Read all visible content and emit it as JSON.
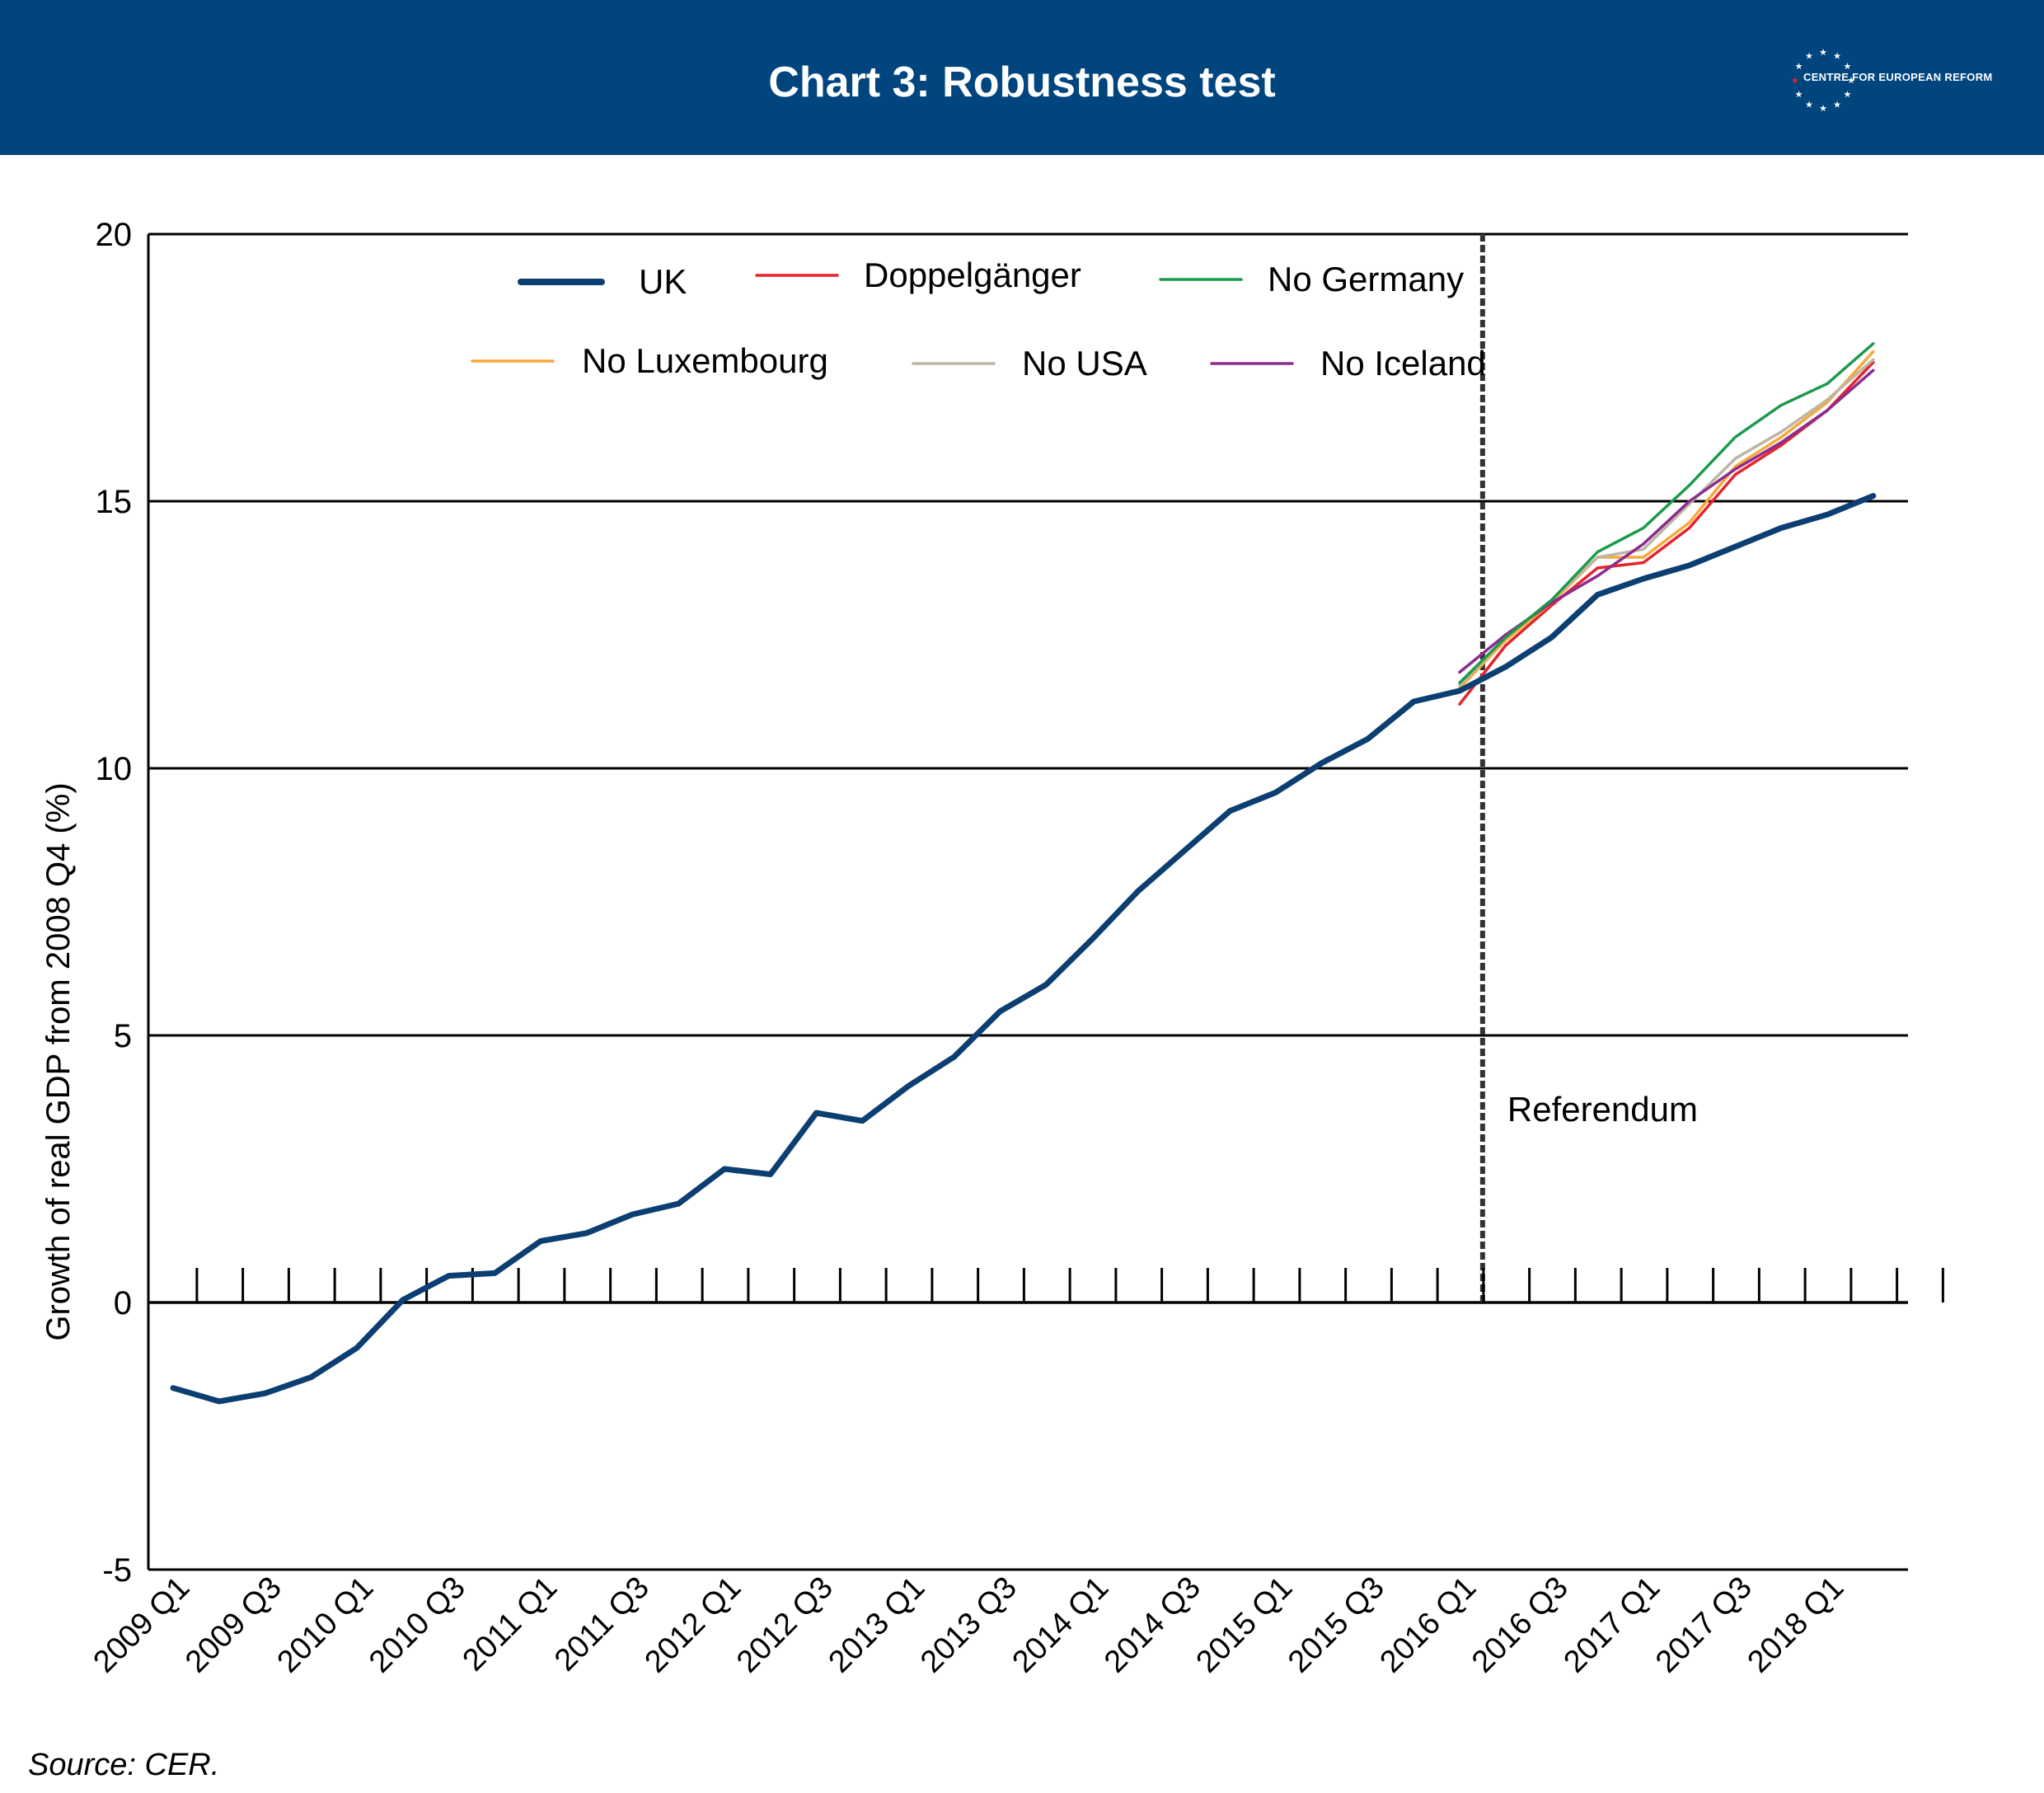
{
  "header": {
    "title": "Chart 3: Robustness test",
    "logo_text": "CENTRE FOR EUROPEAN REFORM"
  },
  "colors": {
    "header_bg": "#00457e",
    "uk": "#0b3f72",
    "doppelganger": "#e5232b",
    "no_germany": "#1c9a4c",
    "no_luxembourg": "#f7a93b",
    "no_usa": "#bdb6a6",
    "no_iceland": "#8b2c8e"
  },
  "source": "Source: CER.",
  "chart_data": {
    "type": "line",
    "ylabel": "Growth of real GDP from 2008 Q4 (%)",
    "ylim": [
      -5,
      20
    ],
    "yticks": [
      -5,
      0,
      5,
      10,
      15,
      20
    ],
    "grid": "horizontal",
    "legend_position": "top",
    "x": [
      "2009 Q1",
      "2009 Q2",
      "2009 Q3",
      "2009 Q4",
      "2010 Q1",
      "2010 Q2",
      "2010 Q3",
      "2010 Q4",
      "2011 Q1",
      "2011 Q2",
      "2011 Q3",
      "2011 Q4",
      "2012 Q1",
      "2012 Q2",
      "2012 Q3",
      "2012 Q4",
      "2013 Q1",
      "2013 Q2",
      "2013 Q3",
      "2013 Q4",
      "2014 Q1",
      "2014 Q2",
      "2014 Q3",
      "2014 Q4",
      "2015 Q1",
      "2015 Q2",
      "2015 Q3",
      "2015 Q4",
      "2016 Q1",
      "2016 Q2",
      "2016 Q3",
      "2016 Q4",
      "2017 Q1",
      "2017 Q2",
      "2017 Q3",
      "2017 Q4",
      "2018 Q1",
      "2018 Q2"
    ],
    "xtick_labels": [
      "2009 Q1",
      "2009 Q3",
      "2010 Q1",
      "2010 Q3",
      "2011 Q1",
      "2011 Q3",
      "2012 Q1",
      "2012 Q3",
      "2013 Q1",
      "2013 Q3",
      "2014 Q1",
      "2014 Q3",
      "2015 Q1",
      "2015 Q3",
      "2016 Q1",
      "2016 Q3",
      "2017 Q1",
      "2017 Q3",
      "2018 Q1"
    ],
    "annotation": {
      "label": "Referendum",
      "x_between": [
        "2016 Q1",
        "2016 Q2"
      ]
    },
    "series": [
      {
        "name": "UK",
        "color_key": "uk",
        "values": [
          -1.6,
          -1.85,
          -1.7,
          -1.4,
          -0.85,
          0.05,
          0.5,
          0.55,
          1.15,
          1.3,
          1.65,
          1.85,
          2.5,
          2.4,
          3.55,
          3.4,
          4.05,
          4.6,
          5.45,
          5.95,
          6.8,
          7.7,
          8.45,
          9.2,
          9.55,
          10.1,
          10.55,
          11.25,
          11.45,
          11.9,
          12.45,
          13.25,
          13.55,
          13.8,
          14.15,
          14.5,
          14.75,
          15.1
        ]
      },
      {
        "name": "Doppelgänger",
        "color_key": "doppelganger",
        "values": [
          null,
          null,
          null,
          null,
          null,
          null,
          null,
          null,
          null,
          null,
          null,
          null,
          null,
          null,
          null,
          null,
          null,
          null,
          null,
          null,
          null,
          null,
          null,
          null,
          null,
          null,
          null,
          null,
          11.2,
          12.3,
          13.05,
          13.75,
          13.85,
          14.5,
          15.5,
          16.05,
          16.7,
          17.6
        ]
      },
      {
        "name": "No Germany",
        "color_key": "no_germany",
        "values": [
          null,
          null,
          null,
          null,
          null,
          null,
          null,
          null,
          null,
          null,
          null,
          null,
          null,
          null,
          null,
          null,
          null,
          null,
          null,
          null,
          null,
          null,
          null,
          null,
          null,
          null,
          null,
          null,
          11.6,
          12.45,
          13.15,
          14.05,
          14.5,
          15.3,
          16.2,
          16.8,
          17.2,
          17.95
        ]
      },
      {
        "name": "No Luxembourg",
        "color_key": "no_luxembourg",
        "values": [
          null,
          null,
          null,
          null,
          null,
          null,
          null,
          null,
          null,
          null,
          null,
          null,
          null,
          null,
          null,
          null,
          null,
          null,
          null,
          null,
          null,
          null,
          null,
          null,
          null,
          null,
          null,
          null,
          11.5,
          12.4,
          13.1,
          13.95,
          13.95,
          14.6,
          15.65,
          16.2,
          16.85,
          17.8
        ]
      },
      {
        "name": "No USA",
        "color_key": "no_usa",
        "values": [
          null,
          null,
          null,
          null,
          null,
          null,
          null,
          null,
          null,
          null,
          null,
          null,
          null,
          null,
          null,
          null,
          null,
          null,
          null,
          null,
          null,
          null,
          null,
          null,
          null,
          null,
          null,
          null,
          11.55,
          12.45,
          13.15,
          13.95,
          14.1,
          14.95,
          15.8,
          16.3,
          16.9,
          17.65
        ]
      },
      {
        "name": "No Iceland",
        "color_key": "no_iceland",
        "values": [
          null,
          null,
          null,
          null,
          null,
          null,
          null,
          null,
          null,
          null,
          null,
          null,
          null,
          null,
          null,
          null,
          null,
          null,
          null,
          null,
          null,
          null,
          null,
          null,
          null,
          null,
          null,
          null,
          11.8,
          12.5,
          13.1,
          13.6,
          14.2,
          15.0,
          15.6,
          16.1,
          16.7,
          17.45
        ]
      }
    ]
  }
}
